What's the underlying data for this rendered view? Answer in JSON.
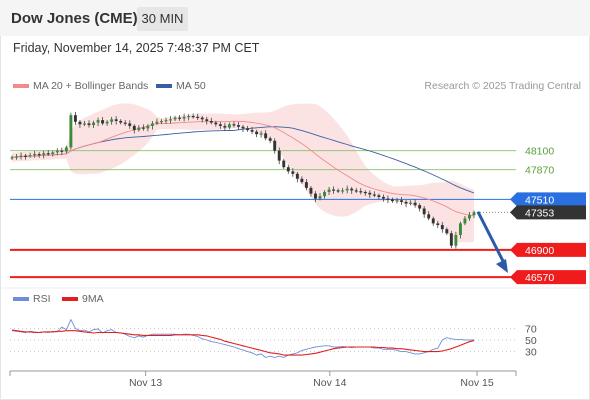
{
  "header": {
    "title": "Dow Jones (CME)",
    "timeframe": "30 MIN"
  },
  "datetime": "Friday, November 14, 2025 7:48:37 PM CET",
  "legend": {
    "ma20": {
      "label": "MA 20 + Bollinger Bands",
      "color": "#f08c8c"
    },
    "ma50": {
      "label": "MA 50",
      "color": "#3a5fa0"
    }
  },
  "credit": "Research © 2025 Trading Central",
  "rsi_legend": {
    "rsi": {
      "label": "RSI",
      "color": "#6d8fd8"
    },
    "ma9": {
      "label": "9MA",
      "color": "#e02020"
    }
  },
  "chart_data": [
    {
      "type": "line",
      "subtype": "candlestick",
      "grid": false,
      "y_domain": [
        46450,
        48750
      ],
      "x_range": [
        "Nov 12",
        "Nov 15"
      ],
      "x_tick_labels": [
        "Nov 13",
        "Nov 14",
        "Nov 15"
      ],
      "y_tick_labels": [
        "48100",
        "47870",
        "47510",
        "47353",
        "46900",
        "46570"
      ],
      "close": [
        48020,
        48030,
        48040,
        48035,
        48045,
        48060,
        48050,
        48070,
        48060,
        48080,
        48100,
        48090,
        48140,
        48530,
        48450,
        48420,
        48430,
        48410,
        48440,
        48470,
        48430,
        48450,
        48480,
        48460,
        48440,
        48430,
        48400,
        48350,
        48380,
        48370,
        48400,
        48430,
        48450,
        48460,
        48470,
        48480,
        48500,
        48490,
        48510,
        48520,
        48510,
        48500,
        48480,
        48460,
        48440,
        48420,
        48400,
        48380,
        48420,
        48410,
        48390,
        48370,
        48350,
        48330,
        48300,
        48310,
        48250,
        48220,
        48100,
        47980,
        47900,
        47850,
        47820,
        47760,
        47720,
        47650,
        47580,
        47520,
        47550,
        47600,
        47630,
        47620,
        47610,
        47620,
        47640,
        47620,
        47610,
        47600,
        47590,
        47570,
        47560,
        47540,
        47520,
        47510,
        47490,
        47500,
        47480,
        47460,
        47470,
        47440,
        47400,
        47330,
        47280,
        47220,
        47200,
        47150,
        47100,
        46950,
        47080,
        47220,
        47280,
        47320,
        47353
      ],
      "key_levels": [
        {
          "label": "48100",
          "value": 48100,
          "style": "resistance",
          "color": "#86c06a"
        },
        {
          "label": "47870",
          "value": 47870,
          "style": "resistance",
          "color": "#86c06a"
        },
        {
          "label": "47510",
          "value": 47510,
          "style": "pivot",
          "color": "#2a6fe0"
        },
        {
          "label": "47353",
          "value": 47353,
          "style": "last",
          "color": "#333333"
        },
        {
          "label": "46900",
          "value": 46900,
          "style": "support",
          "color": "#ee1c1c"
        },
        {
          "label": "46570",
          "value": 46570,
          "style": "support",
          "color": "#ee1c1c"
        }
      ],
      "forecast_arrow": {
        "from": 47360,
        "to": 46620,
        "direction": "down",
        "color": "#2a5aa8"
      }
    },
    {
      "type": "line",
      "name": "RSI",
      "y_domain": [
        0,
        100
      ],
      "y_tick_labels": [
        "70",
        "50",
        "30"
      ],
      "series": [
        {
          "name": "RSI",
          "values": [
            66,
            65,
            64,
            63,
            65,
            64,
            63,
            64,
            63,
            65,
            64,
            72,
            68,
            85,
            70,
            66,
            67,
            64,
            68,
            69,
            62,
            66,
            68,
            63,
            62,
            60,
            56,
            54,
            57,
            55,
            58,
            60,
            60,
            60,
            60,
            60,
            60,
            59,
            60,
            60,
            58,
            56,
            52,
            50,
            47,
            46,
            44,
            42,
            40,
            38,
            35,
            33,
            30,
            28,
            24,
            26,
            20,
            22,
            20,
            22,
            20,
            24,
            26,
            28,
            32,
            34,
            36,
            38,
            39,
            40,
            40,
            38,
            38,
            39,
            38,
            37,
            38,
            38,
            38,
            38,
            36,
            36,
            34,
            34,
            34,
            32,
            30,
            30,
            28,
            26,
            26,
            28,
            30,
            34,
            36,
            50,
            54,
            52,
            51,
            51,
            50,
            50,
            50
          ]
        },
        {
          "name": "9MA",
          "values": [
            67,
            66,
            65,
            64,
            64,
            63,
            63,
            64,
            64,
            64,
            65,
            65,
            66,
            66,
            66,
            65,
            64,
            63,
            62,
            63,
            63,
            63,
            63,
            63,
            62,
            61,
            60,
            59,
            59,
            58,
            58,
            58,
            58,
            58,
            58,
            58,
            59,
            59,
            59,
            59,
            59,
            59,
            58,
            57,
            55,
            53,
            51,
            48,
            46,
            44,
            42,
            40,
            38,
            36,
            34,
            32,
            30,
            28,
            27,
            26,
            24,
            24,
            24,
            24,
            24,
            25,
            26,
            27,
            29,
            31,
            33,
            35,
            36,
            37,
            38,
            38,
            38,
            38,
            38,
            38,
            38,
            37,
            37,
            36,
            36,
            35,
            35,
            34,
            33,
            32,
            31,
            30,
            30,
            30,
            30,
            31,
            33,
            35,
            38,
            41,
            44,
            47,
            49
          ]
        }
      ]
    }
  ]
}
